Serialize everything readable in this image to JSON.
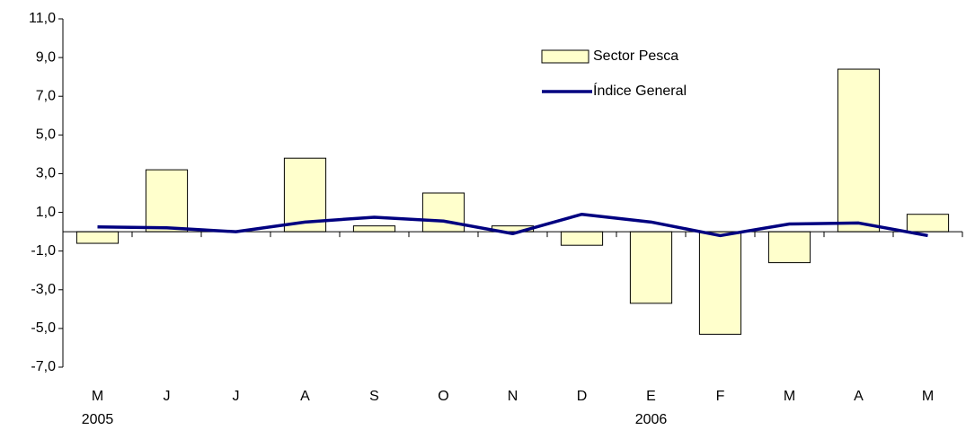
{
  "chart_data": {
    "type": "bar_line",
    "categories": [
      "M",
      "J",
      "J",
      "A",
      "S",
      "O",
      "N",
      "D",
      "E",
      "F",
      "M",
      "A",
      "M"
    ],
    "years": [
      "2005",
      null,
      null,
      null,
      null,
      null,
      null,
      null,
      "2006",
      null,
      null,
      null,
      null
    ],
    "series": [
      {
        "name": "Sector Pesca",
        "type": "bar",
        "color": "#ffffcc",
        "values": [
          -0.6,
          3.2,
          0.0,
          3.8,
          0.3,
          2.0,
          0.3,
          -0.7,
          -3.7,
          -5.3,
          -1.6,
          8.4,
          0.9
        ]
      },
      {
        "name": "Índice General",
        "type": "line",
        "color": "#000080",
        "values": [
          0.25,
          0.2,
          0.0,
          0.5,
          0.75,
          0.55,
          -0.1,
          0.9,
          0.5,
          -0.2,
          0.4,
          0.45,
          -0.2
        ]
      }
    ],
    "ylim": [
      -7,
      11
    ],
    "yticks": [
      {
        "value": 11,
        "label": "11,0"
      },
      {
        "value": 9,
        "label": "9,0"
      },
      {
        "value": 7,
        "label": "7,0"
      },
      {
        "value": 5,
        "label": "5,0"
      },
      {
        "value": 3,
        "label": "3,0"
      },
      {
        "value": 1,
        "label": "1,0"
      },
      {
        "value": -1,
        "label": "-1,0"
      },
      {
        "value": -3,
        "label": "-3,0"
      },
      {
        "value": -5,
        "label": "-5,0"
      },
      {
        "value": -7,
        "label": "-7,0"
      }
    ],
    "grid": false,
    "legend": "top-center"
  }
}
